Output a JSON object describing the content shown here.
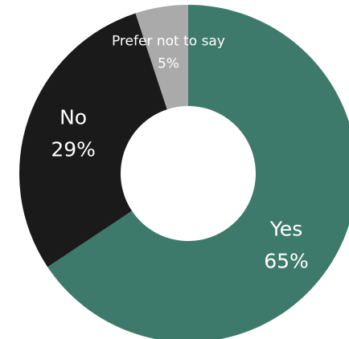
{
  "chart_data": {
    "type": "pie",
    "title": "",
    "categories": [
      "Yes",
      "No",
      "Prefer not to say"
    ],
    "values": [
      65,
      29,
      5
    ],
    "value_labels": [
      "65%",
      "29%",
      "5%"
    ],
    "colors": [
      "#3e7a6b",
      "#1a1a1a",
      "#aaaaaa"
    ],
    "label_color": "#ffffff",
    "background": "#ffffff",
    "donut": true,
    "start_angle_deg": 0,
    "direction": "clockwise",
    "legend": "none"
  }
}
